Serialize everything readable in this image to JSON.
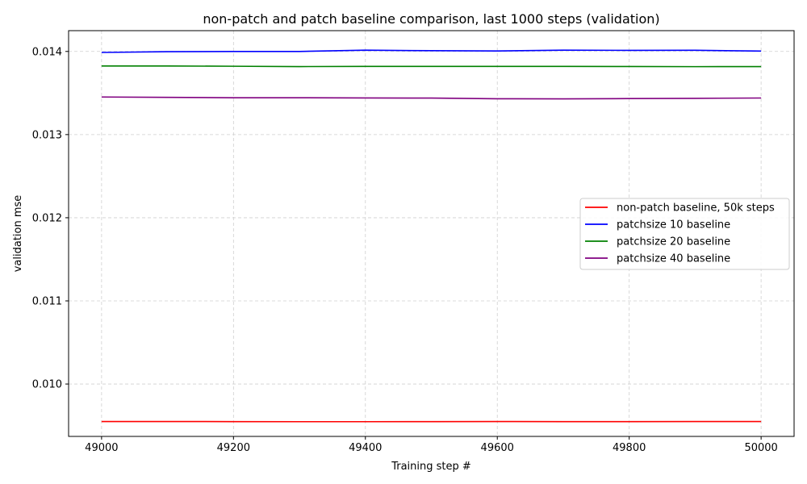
{
  "chart_data": {
    "type": "line",
    "title": "non-patch and patch baseline comparison, last 1000 steps (validation)",
    "xlabel": "Training step #",
    "ylabel": "validation mse",
    "xlim": [
      48950,
      50050
    ],
    "ylim": [
      0.00937,
      0.01425
    ],
    "xticks": [
      49000,
      49200,
      49400,
      49600,
      49800,
      50000
    ],
    "yticks": [
      0.01,
      0.011,
      0.012,
      0.013,
      0.014
    ],
    "ytick_labels": [
      "0.010",
      "0.011",
      "0.012",
      "0.013",
      "0.014"
    ],
    "grid": true,
    "legend_position": "center-right",
    "x": [
      49000,
      49100,
      49200,
      49300,
      49400,
      49500,
      49600,
      49700,
      49800,
      49900,
      50000
    ],
    "series": [
      {
        "name": "non-patch baseline, 50k steps",
        "color": "#ff0000",
        "values": [
          0.009549,
          0.009549,
          0.009548,
          0.009547,
          0.009547,
          0.009548,
          0.009549,
          0.009548,
          0.009548,
          0.009549,
          0.009549
        ]
      },
      {
        "name": "patchsize 10 baseline",
        "color": "#0000ff",
        "values": [
          0.013988,
          0.013997,
          0.014,
          0.014,
          0.014015,
          0.014009,
          0.014006,
          0.014015,
          0.014013,
          0.014014,
          0.014004
        ]
      },
      {
        "name": "patchsize 20 baseline",
        "color": "#008000",
        "values": [
          0.013825,
          0.013825,
          0.013822,
          0.013818,
          0.01382,
          0.01382,
          0.01382,
          0.01382,
          0.013819,
          0.013817,
          0.013818
        ]
      },
      {
        "name": "patchsize 40 baseline",
        "color": "#800080",
        "values": [
          0.013452,
          0.013448,
          0.013443,
          0.013443,
          0.013441,
          0.013439,
          0.013431,
          0.01343,
          0.013433,
          0.013436,
          0.01344
        ]
      }
    ]
  }
}
